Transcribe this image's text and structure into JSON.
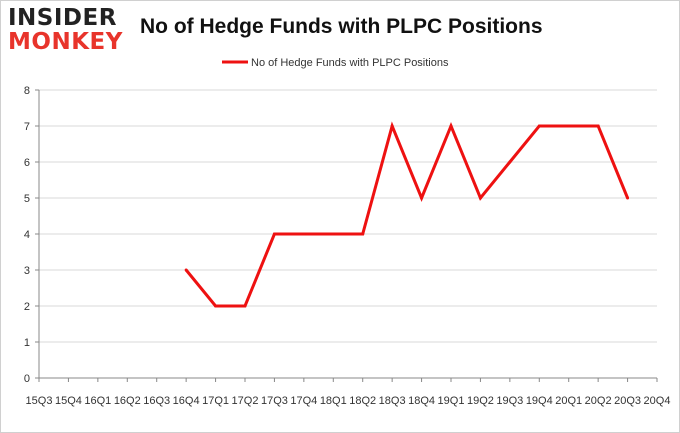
{
  "logo": {
    "line1": "INSIDER",
    "line2": "MONKEY"
  },
  "colors": {
    "series": "#ee1111",
    "grid": "#d9d9d9",
    "axis": "#888888",
    "logo_accent": "#e8342b"
  },
  "chart_data": {
    "type": "line",
    "title": "No of Hedge Funds with PLPC Positions",
    "xlabel": "",
    "ylabel": "",
    "x": [
      "2015Q3",
      "2015Q4",
      "2016Q1",
      "2016Q2",
      "2016Q3",
      "2016Q4",
      "2017Q1",
      "2017Q2",
      "2017Q3",
      "2017Q4",
      "2018Q1",
      "2018Q2",
      "2018Q3",
      "2018Q4",
      "2019Q1",
      "2019Q2",
      "2019Q3",
      "2019Q4",
      "2020Q1",
      "2020Q2",
      "2020Q3",
      "2020Q4"
    ],
    "tick_labels": [
      "15Q3",
      "15Q4",
      "16Q1",
      "16Q2",
      "16Q3",
      "16Q4",
      "17Q1",
      "17Q2",
      "17Q3",
      "17Q4",
      "18Q1",
      "18Q2",
      "18Q3",
      "18Q4",
      "19Q1",
      "19Q2",
      "19Q3",
      "19Q4",
      "20Q1",
      "20Q2",
      "20Q3",
      "20Q4"
    ],
    "y_ticks": [
      "0",
      "1",
      "2",
      "3",
      "4",
      "5",
      "6",
      "7",
      "8"
    ],
    "ylim": [
      0,
      8
    ],
    "grid": true,
    "legend_position": "top-center",
    "series": [
      {
        "name": "No of Hedge Funds with PLPC Positions",
        "values": [
          null,
          null,
          null,
          null,
          null,
          3,
          2,
          2,
          4,
          4,
          4,
          4,
          7,
          5,
          7,
          5,
          6,
          7,
          7,
          7,
          5,
          null
        ]
      }
    ]
  }
}
